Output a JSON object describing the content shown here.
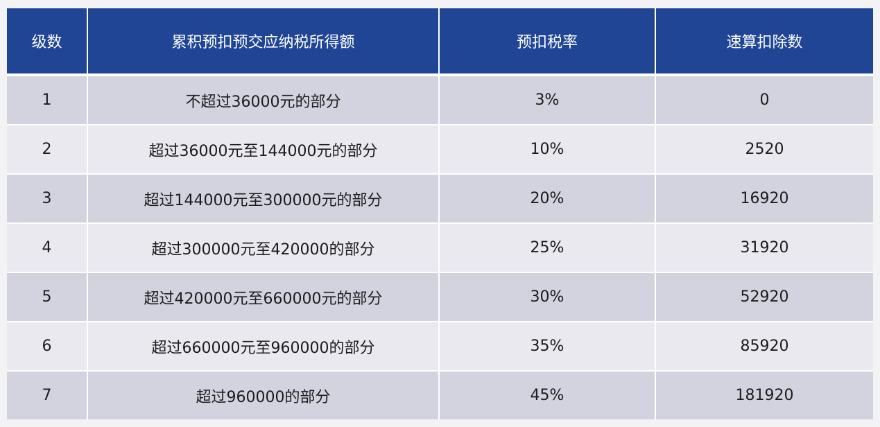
{
  "table": {
    "headers": [
      "级数",
      "累积预扣预交应纳税所得额",
      "预扣税率",
      "速算扣除数"
    ],
    "rows": [
      {
        "level": "1",
        "range": "不超过36000元的部分",
        "rate": "3%",
        "deduction": "0"
      },
      {
        "level": "2",
        "range": "超过36000元至144000元的部分",
        "rate": "10%",
        "deduction": "2520"
      },
      {
        "level": "3",
        "range": "超过144000元至300000元的部分",
        "rate": "20%",
        "deduction": "16920"
      },
      {
        "level": "4",
        "range": "超过300000元至420000的部分",
        "rate": "25%",
        "deduction": "31920"
      },
      {
        "level": "5",
        "range": "超过420000元至660000元的部分",
        "rate": "30%",
        "deduction": "52920"
      },
      {
        "level": "6",
        "range": "超过660000元至960000的部分",
        "rate": "35%",
        "deduction": "85920"
      },
      {
        "level": "7",
        "range": "超过960000的部分",
        "rate": "45%",
        "deduction": "181920"
      }
    ]
  },
  "colors": {
    "header_bg": "#1f4594",
    "row_odd_bg": "#d2d3df",
    "row_even_bg": "#e9e9ef"
  }
}
